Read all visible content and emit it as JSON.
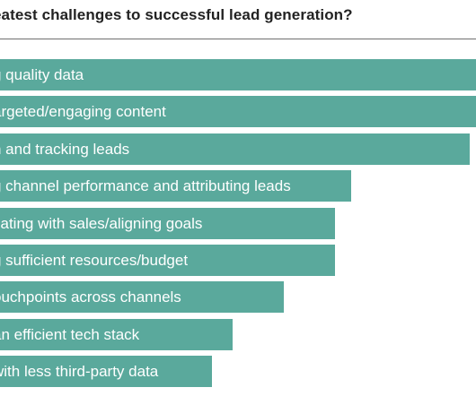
{
  "chart_data": {
    "type": "bar",
    "orientation": "horizontal",
    "title": "eatest challenges to successful lead generation?",
    "xlabel": "",
    "ylabel": "",
    "categories": [
      "g quality data",
      "argeted/engaging content",
      "n and tracking leads",
      "g channel performance and attributing leads",
      "cating with sales/aligning goals",
      "g sufficient resources/budget",
      "ouchpoints across channels",
      "an efficient tech stack",
      " with less third-party data"
    ],
    "values": [
      100,
      100,
      98,
      75,
      72,
      72,
      62,
      52,
      48
    ],
    "xlim": [
      0,
      100
    ],
    "grid": false,
    "bar_color": "#5aa99c",
    "label_color": "#ffffff",
    "title_color": "#222222"
  }
}
